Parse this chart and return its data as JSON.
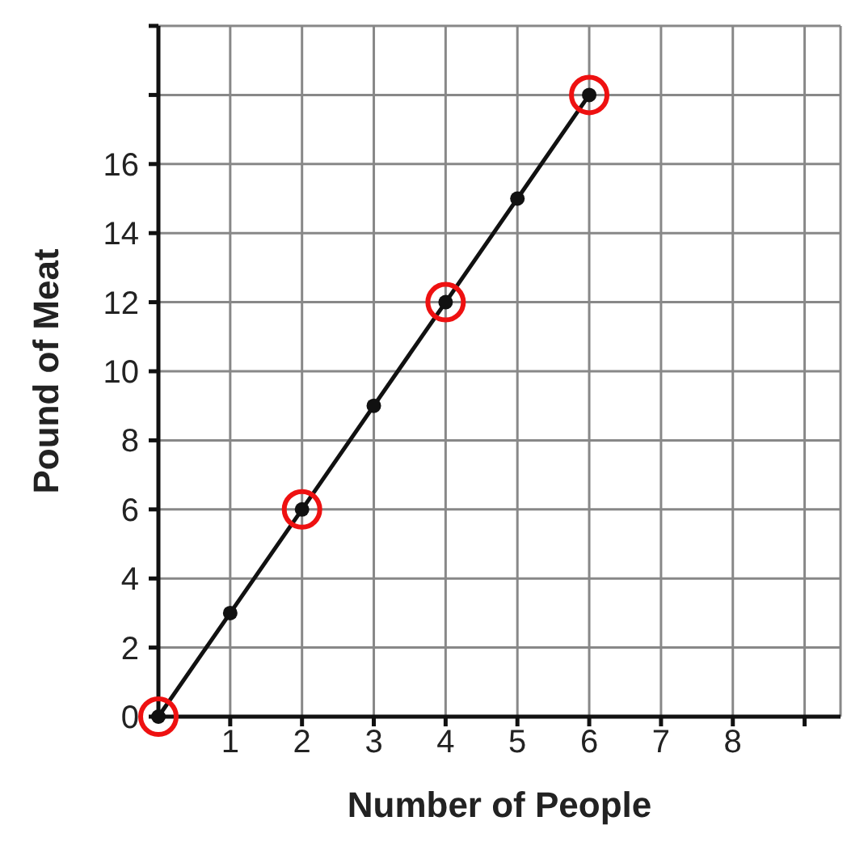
{
  "chart_data": {
    "type": "line",
    "xlabel": "Number of People",
    "ylabel": "Pound of Meat",
    "series": [
      {
        "type": "line",
        "color": "#111111",
        "marker": "circle",
        "x": [
          0,
          1,
          2,
          3,
          4,
          5,
          6
        ],
        "values": [
          0,
          3,
          6,
          9,
          12,
          15,
          18
        ]
      },
      {
        "type": "scatter",
        "color": "#ee1111",
        "marker": "circle",
        "x": [
          0,
          2,
          4,
          6
        ],
        "values": [
          0,
          6,
          12,
          18
        ]
      }
    ],
    "xlim": [
      0,
      9.5
    ],
    "xticks": [
      1,
      2,
      3,
      4,
      5,
      6,
      7,
      8,
      {
        "value": 9,
        "label": null
      }
    ],
    "ylim": [
      0,
      20
    ],
    "yticks": [
      0,
      2,
      4,
      6,
      8,
      10,
      12,
      14,
      16,
      {
        "value": 18,
        "label": null
      },
      {
        "value": 20,
        "label": null
      }
    ],
    "grid": true
  }
}
